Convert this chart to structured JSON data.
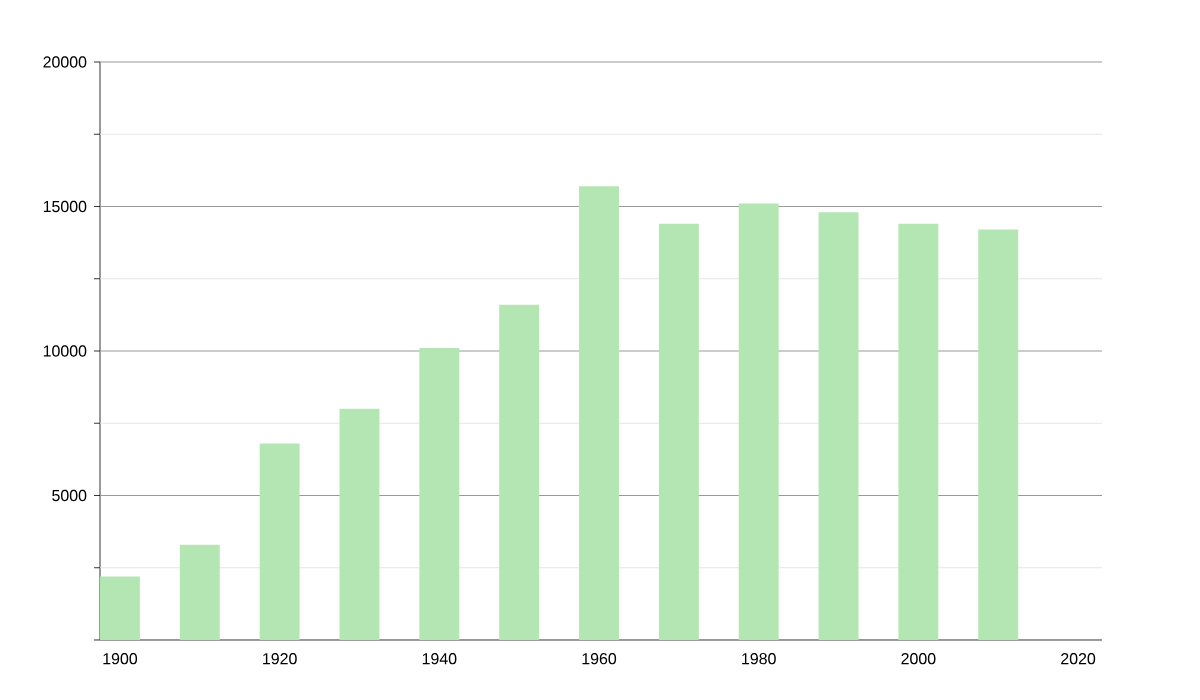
{
  "chart_data": {
    "type": "bar",
    "x": [
      1900,
      1910,
      1920,
      1930,
      1940,
      1950,
      1960,
      1970,
      1980,
      1990,
      2000,
      2010
    ],
    "values": [
      2200,
      3300,
      6800,
      8000,
      10100,
      11600,
      15700,
      14400,
      15100,
      14800,
      14400,
      14200
    ],
    "color": "#b3e6b3",
    "xlim": [
      1897.5,
      2023
    ],
    "xticks": [
      1900,
      1920,
      1940,
      1960,
      1980,
      2000,
      2020
    ],
    "ylim": [
      0,
      20000
    ],
    "yticks": [
      {
        "value": 0,
        "label": null
      },
      {
        "value": 2500,
        "label": null
      },
      5000,
      {
        "value": 7500,
        "label": null
      },
      10000,
      {
        "value": 12500,
        "label": null
      },
      15000,
      {
        "value": 17500,
        "label": null
      },
      20000
    ],
    "grid": "y"
  }
}
